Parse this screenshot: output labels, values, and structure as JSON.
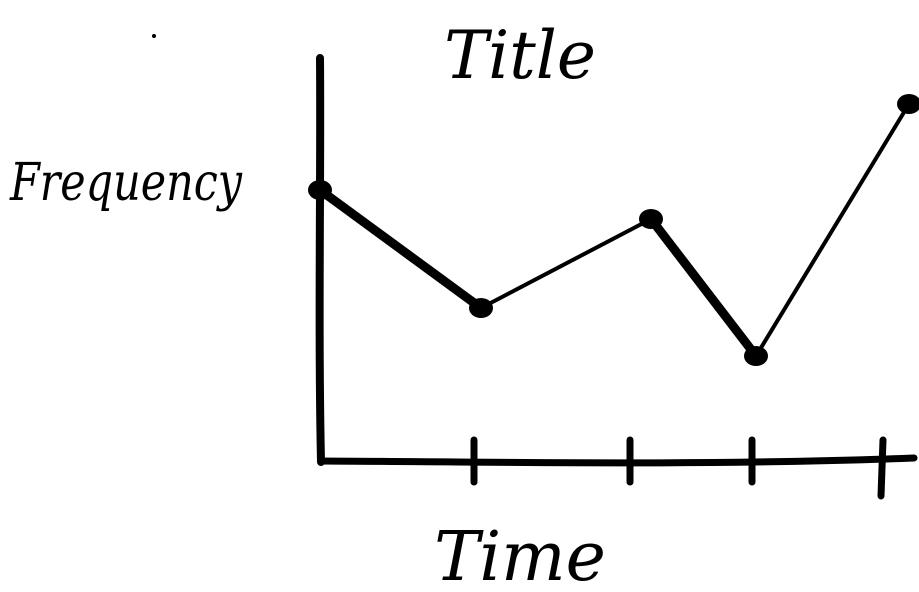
{
  "chart_data": {
    "type": "line",
    "title": "Title",
    "xlabel": "Time",
    "ylabel": "Frequency",
    "x": [
      0,
      1,
      2,
      3,
      4
    ],
    "values": [
      3.6,
      2.0,
      3.2,
      1.4,
      4.9
    ],
    "xlim": [
      0,
      4
    ],
    "ylim": [
      0,
      5
    ],
    "x_ticks": [
      1,
      2,
      3,
      4
    ],
    "tick_labels": [],
    "grid": false,
    "legend": "none"
  },
  "colors": {
    "ink": "#000000",
    "background": "#ffffff"
  }
}
